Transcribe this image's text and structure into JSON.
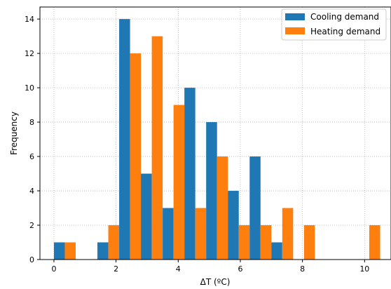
{
  "chart_data": {
    "type": "bar",
    "xlabel": "ΔT (ºC)",
    "ylabel": "Frequency",
    "xlim": [
      -0.45,
      10.85
    ],
    "ylim": [
      0,
      14.7
    ],
    "xticks": [
      0,
      2,
      4,
      6,
      8,
      10
    ],
    "yticks": [
      0,
      2,
      4,
      6,
      8,
      10,
      12,
      14
    ],
    "grid": true,
    "legend_position": "top-right",
    "bin_width": 0.7,
    "bins": [
      0,
      0.7,
      1.4,
      2.1,
      2.8,
      3.5,
      4.2,
      4.9,
      5.6,
      6.3,
      7.0,
      7.7,
      8.4,
      9.1,
      9.8
    ],
    "series": [
      {
        "name": "Cooling demand",
        "color": "#1f77b4",
        "values": [
          1,
          0,
          1,
          14,
          5,
          3,
          10,
          8,
          4,
          6,
          1,
          0,
          0,
          0,
          0
        ]
      },
      {
        "name": "Heating demand",
        "color": "#ff7f0e",
        "values": [
          1,
          0,
          2,
          12,
          13,
          9,
          3,
          6,
          2,
          2,
          3,
          2,
          0,
          0,
          2
        ]
      }
    ]
  }
}
